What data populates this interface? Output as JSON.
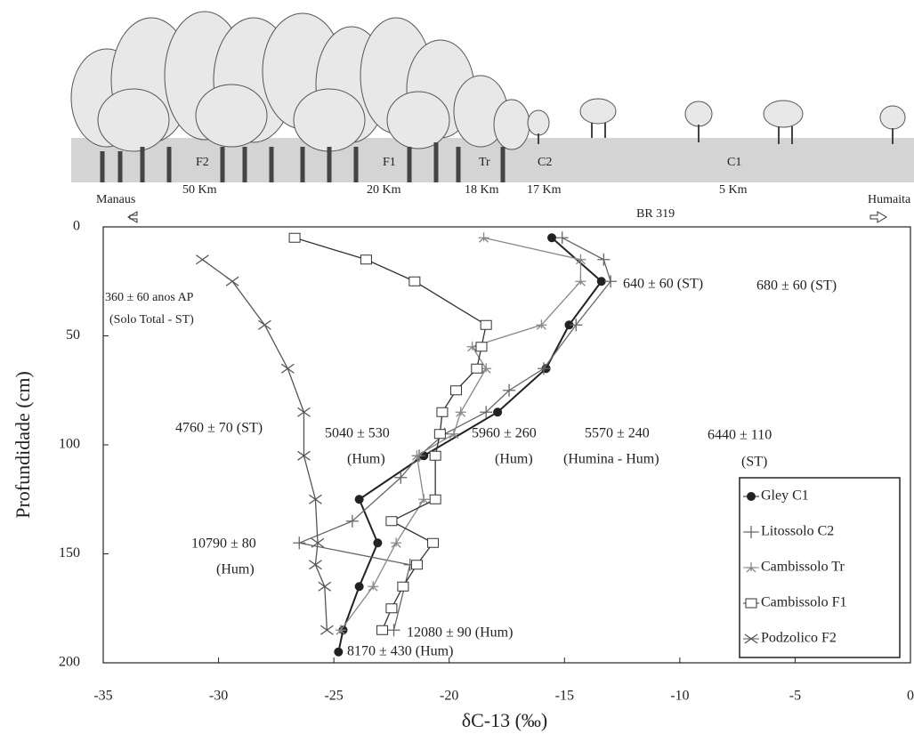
{
  "illustration": {
    "labels": [
      "F2",
      "F1",
      "Tr",
      "C2",
      "C1",
      "50 Km",
      "20 Km",
      "18 Km",
      "17 Km",
      "5 Km",
      "Manaus",
      "Humaita",
      "BR 319"
    ]
  },
  "chart_data": {
    "type": "line",
    "x_label": "δC-13 (‰)",
    "y_label": "Profundidade (cm)",
    "xlim": [
      -35,
      0
    ],
    "xticks": [
      -35,
      -30,
      -25,
      -20,
      -15,
      -10,
      -5,
      0
    ],
    "ylim": [
      0,
      200
    ],
    "yticks": [
      0,
      50,
      100,
      150,
      200
    ],
    "y_inverted": true,
    "legend": "lower right",
    "series": [
      {
        "name": "Gley C1",
        "color": "#222222",
        "marker": "circle",
        "x": [
          -15.55,
          -13.4,
          -14.8,
          -15.8,
          -17.9,
          -21.1,
          -23.9,
          -23.1,
          -23.9,
          -24.6,
          -24.8
        ],
        "values": [
          5,
          25,
          45,
          65,
          85,
          105,
          125,
          145,
          165,
          185,
          195
        ]
      },
      {
        "name": "Litossolo C2",
        "color": "#666666",
        "marker": "plus",
        "x": [
          -15.1,
          -13.3,
          -13.0,
          -14.5,
          -15.9,
          -17.4,
          -18.4,
          -20.2,
          -21.3,
          -22.1,
          -24.2,
          -26.5,
          -21.7,
          -22.4
        ],
        "values": [
          5,
          15,
          25,
          45,
          65,
          75,
          85,
          95,
          105,
          115,
          135,
          145,
          155,
          185
        ]
      },
      {
        "name": "Cambissolo Tr",
        "color": "#888888",
        "marker": "star",
        "x": [
          -18.5,
          -14.3,
          -14.3,
          -16.0,
          -19.0,
          -18.4,
          -19.5,
          -19.8,
          -21.4,
          -21.1,
          -22.3,
          -23.3,
          -24.7
        ],
        "values": [
          5,
          15,
          25,
          45,
          55,
          65,
          85,
          95,
          105,
          125,
          145,
          165,
          185
        ]
      },
      {
        "name": "Cambissolo F1",
        "color": "#333333",
        "marker": "square",
        "x": [
          -26.7,
          -23.6,
          -21.5,
          -18.4,
          -18.6,
          -18.8,
          -19.7,
          -20.3,
          -20.4,
          -20.6,
          -20.6,
          -22.5,
          -20.7,
          -21.4,
          -22.0,
          -22.5,
          -22.9
        ],
        "values": [
          5,
          15,
          25,
          45,
          55,
          65,
          75,
          85,
          95,
          105,
          125,
          135,
          145,
          155,
          165,
          175,
          185
        ]
      },
      {
        "name": "Podzolico F2",
        "color": "#555555",
        "marker": "x",
        "x": [
          -30.7,
          -29.4,
          -28.0,
          -27.0,
          -26.3,
          -26.3,
          -25.8,
          -25.7,
          -25.8,
          -25.4,
          -25.3
        ],
        "values": [
          15,
          25,
          45,
          65,
          85,
          105,
          125,
          145,
          155,
          165,
          185
        ]
      }
    ],
    "annotations": [
      "360 ± 60 anos AP",
      "(Solo Total - ST)",
      "640 ± 60 (ST)",
      "680 ± 60 (ST)",
      "4760 ± 70 (ST)",
      "5040 ± 530",
      "(Hum)",
      "5960 ± 260",
      "(Hum)",
      "5570 ± 240",
      "(Humina - Hum)",
      "6440 ± 110",
      "(ST)",
      "10790 ± 80",
      "(Hum)",
      "12080 ± 90 (Hum)",
      "8170 ± 430 (Hum)"
    ]
  }
}
